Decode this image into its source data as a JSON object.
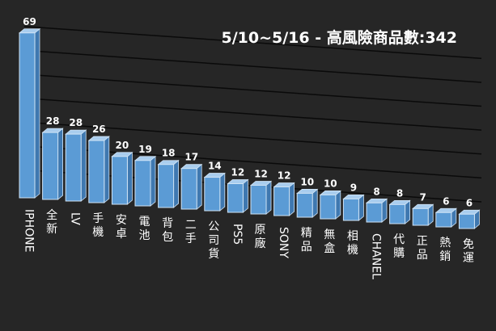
{
  "colors": {
    "background": "#262626",
    "bar_front": "#5b9bd5",
    "bar_side": "#3f78b0",
    "bar_top": "#a9cdee",
    "bar_outline": "#cfe3f5",
    "gridline": "#0a0a0a",
    "text": "#ffffff"
  },
  "chart_data": {
    "type": "bar",
    "title": "5/10~5/16 - 高風險商品數:342",
    "xlabel": "",
    "ylabel": "",
    "ylim": [
      0,
      70
    ],
    "grid": true,
    "legend": "none",
    "categories": [
      "IPHONE",
      "全新",
      "LV",
      "手機",
      "安卓",
      "電池",
      "背包",
      "二手",
      "公司貨",
      "PS5",
      "原廠",
      "SONY",
      "精品",
      "無盒",
      "相機",
      "CHANEL",
      "代購",
      "正品",
      "熱銷",
      "免運"
    ],
    "values": [
      69,
      28,
      28,
      26,
      20,
      19,
      18,
      17,
      14,
      12,
      12,
      12,
      10,
      10,
      9,
      8,
      8,
      7,
      6,
      6
    ]
  }
}
